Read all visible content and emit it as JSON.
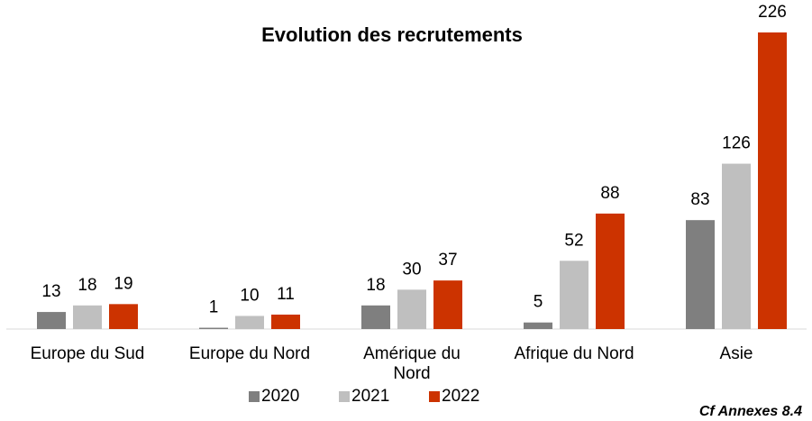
{
  "chart_data": {
    "type": "bar",
    "title": "Evolution des recrutements",
    "categories": [
      "Europe du Sud",
      "Europe du Nord",
      "Amérique du Nord",
      "Afrique du Nord",
      "Asie"
    ],
    "series": [
      {
        "name": "2020",
        "color": "#7f7f7f",
        "values": [
          13,
          1,
          18,
          5,
          83
        ]
      },
      {
        "name": "2021",
        "color": "#bfbfbf",
        "values": [
          18,
          10,
          30,
          52,
          126
        ]
      },
      {
        "name": "2022",
        "color": "#cc3300",
        "values": [
          19,
          11,
          37,
          88,
          226
        ]
      }
    ],
    "ylim": [
      0,
      226
    ],
    "legend": "bottom",
    "footnote": "Cf Annexes 8.4"
  }
}
